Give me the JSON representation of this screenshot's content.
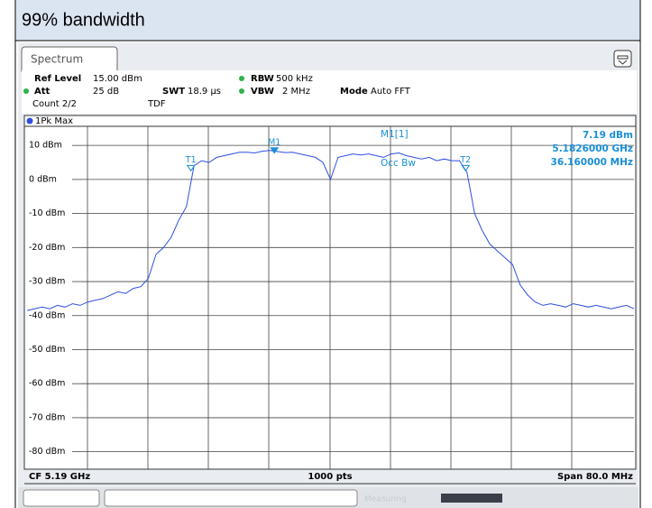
{
  "header": {
    "title": "99% bandwidth"
  },
  "window": {
    "tab": "Spectrum",
    "settings": [
      {
        "label": "Ref Level",
        "value": "15.00 dBm"
      },
      {
        "label": "RBW",
        "value": "500 kHz"
      },
      {
        "label": "Att",
        "value": "25 dB"
      },
      {
        "label": "SWT",
        "value": "18.9 µs"
      },
      {
        "label": "VBW",
        "value": "2 MHz"
      },
      {
        "label": "Mode",
        "value": "Auto FFT"
      }
    ],
    "count": "Count 2/2",
    "tdf": "TDF",
    "trace_label": "1Pk Max",
    "readout": {
      "marker": "M1[1]",
      "level": "7.19 dBm",
      "frequency": "5.1826000 GHz",
      "occ_label": "Occ Bw",
      "occ_value": "36.160000 MHz"
    },
    "footer": {
      "left": "CF 5.19 GHz",
      "center": "1000 pts",
      "right": "Span 80.0 MHz"
    },
    "status": "Measuring"
  },
  "chart_data": {
    "type": "line",
    "xlim": [
      5.15,
      5.23
    ],
    "ylim": [
      -85,
      15
    ],
    "yticks": [
      {
        "value": 10,
        "label": "10 dBm"
      },
      {
        "value": 0,
        "label": "0 dBm"
      },
      {
        "value": -10,
        "label": "-10 dBm"
      },
      {
        "value": -20,
        "label": "-20 dBm"
      },
      {
        "value": -30,
        "label": "-30 dBm"
      },
      {
        "value": -40,
        "label": "-40 dBm"
      },
      {
        "value": -50,
        "label": "-50 dBm"
      },
      {
        "value": -60,
        "label": "-60 dBm"
      },
      {
        "value": -70,
        "label": "-70 dBm"
      },
      {
        "value": -80,
        "label": "-80 dBm"
      }
    ],
    "grid": true,
    "x": [
      5.15,
      5.151,
      5.152,
      5.153,
      5.154,
      5.155,
      5.156,
      5.157,
      5.158,
      5.159,
      5.16,
      5.161,
      5.162,
      5.163,
      5.164,
      5.165,
      5.166,
      5.167,
      5.168,
      5.169,
      5.17,
      5.171,
      5.172,
      5.173,
      5.174,
      5.175,
      5.176,
      5.177,
      5.178,
      5.179,
      5.18,
      5.181,
      5.182,
      5.183,
      5.184,
      5.185,
      5.186,
      5.187,
      5.188,
      5.189,
      5.19,
      5.191,
      5.192,
      5.193,
      5.194,
      5.195,
      5.196,
      5.197,
      5.198,
      5.199,
      5.2,
      5.201,
      5.202,
      5.203,
      5.204,
      5.205,
      5.206,
      5.207,
      5.208,
      5.209,
      5.21,
      5.211,
      5.212,
      5.213,
      5.214,
      5.215,
      5.216,
      5.217,
      5.218,
      5.219,
      5.22,
      5.221,
      5.222,
      5.223,
      5.224,
      5.225,
      5.226,
      5.227,
      5.228,
      5.229,
      5.23
    ],
    "series": [
      {
        "name": "1Pk Max",
        "color": "#2f4fe0",
        "values": [
          -38.5,
          -38,
          -37.5,
          -38,
          -37,
          -37.5,
          -36.5,
          -37,
          -36,
          -35.5,
          -35,
          -34,
          -33,
          -33.5,
          -32,
          -31.5,
          -29,
          -22,
          -20,
          -17,
          -12,
          -8,
          4,
          5.5,
          5,
          6.5,
          7,
          7.5,
          8,
          8,
          7.8,
          8.3,
          8.5,
          8.2,
          7.9,
          8,
          7.5,
          7,
          6.5,
          5,
          0,
          6.5,
          7,
          7.5,
          7.2,
          7.5,
          7,
          6.5,
          7.5,
          7.8,
          7,
          6.5,
          6,
          6.5,
          5.5,
          6,
          5.5,
          5.5,
          2,
          -10,
          -15,
          -19,
          -21,
          -23,
          -25,
          -31,
          -34,
          -36,
          -37,
          -36.5,
          -37,
          -37.5,
          -36.5,
          -37,
          -37.5,
          -37,
          -37.5,
          -38,
          -37.5,
          -37,
          -38
        ]
      }
    ],
    "markers": [
      {
        "label": "M1",
        "x": 5.1826,
        "y": 7.19
      },
      {
        "label": "T1",
        "x": 5.1716,
        "y": 2
      },
      {
        "label": "T2",
        "x": 5.2078,
        "y": 2
      }
    ]
  }
}
